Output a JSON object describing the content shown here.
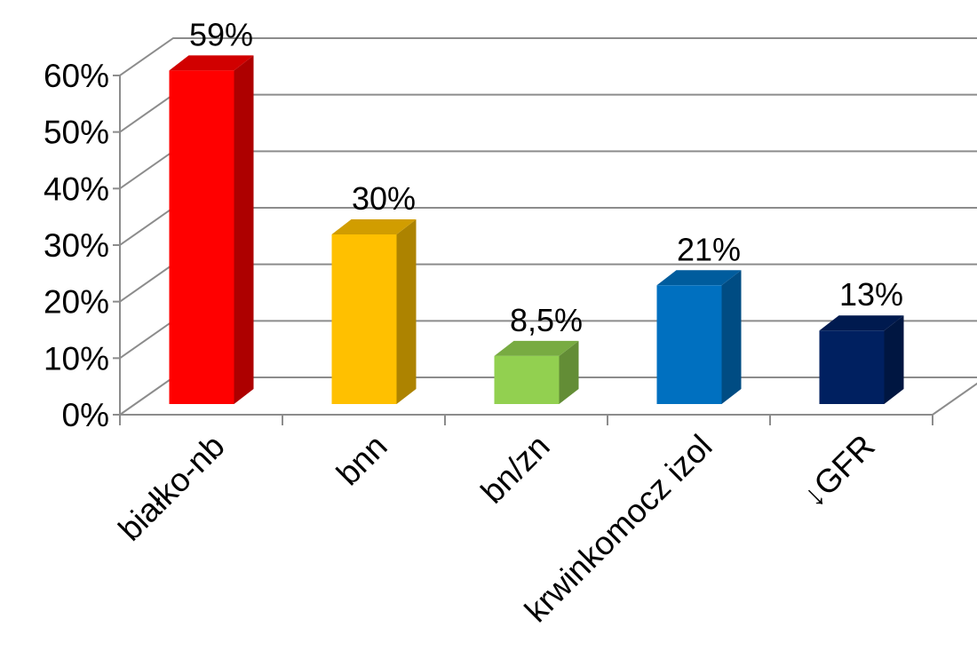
{
  "chart_data": {
    "type": "bar",
    "style": "3d-column",
    "categories": [
      "białko-nb",
      "bnn",
      "bn/zn",
      "krwinkomocz izol",
      "↓GFR"
    ],
    "values": [
      59,
      30,
      8.5,
      21,
      13
    ],
    "data_labels": [
      "59%",
      "30%",
      "8,5%",
      "21%",
      "13%"
    ],
    "colors": [
      "#ff0000",
      "#ffc000",
      "#92d050",
      "#0070c0",
      "#002060"
    ],
    "y_ticks": [
      0,
      10,
      20,
      30,
      40,
      50,
      60
    ],
    "y_tick_labels": [
      "0%",
      "10%",
      "20%",
      "30%",
      "40%",
      "50%",
      "60%"
    ],
    "ylim": [
      0,
      60
    ],
    "grid": true,
    "legend": "none",
    "title": "",
    "xlabel": "",
    "ylabel": ""
  }
}
